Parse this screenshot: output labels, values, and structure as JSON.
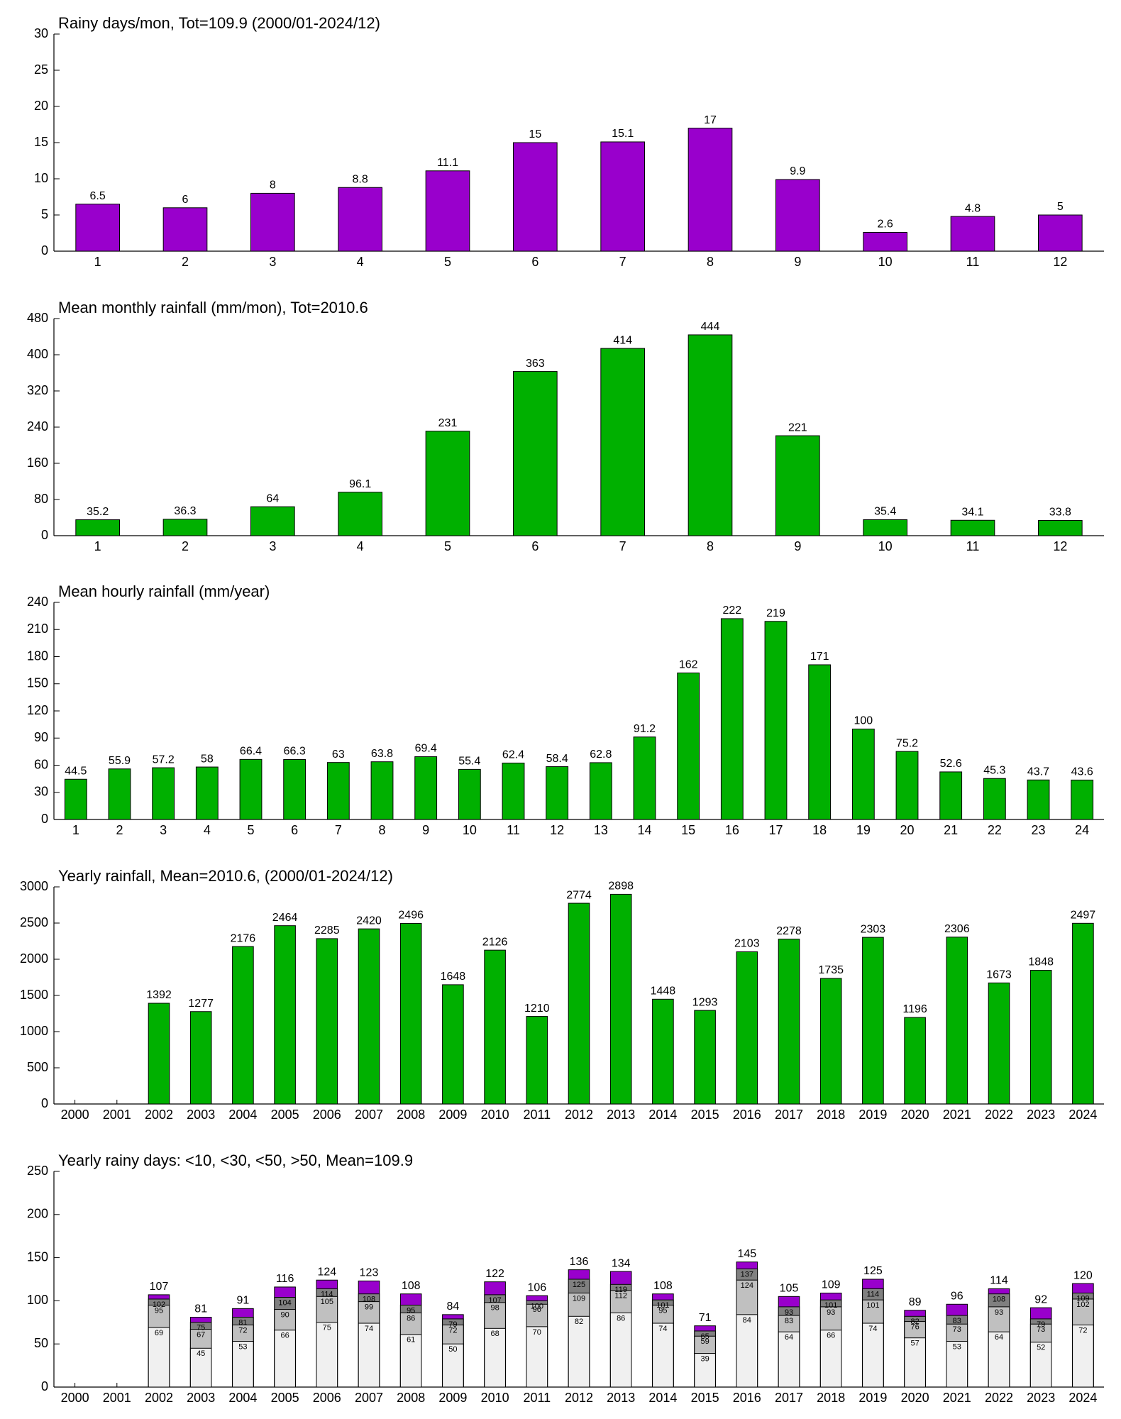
{
  "chart_data": [
    {
      "type": "bar",
      "title": "Rainy days/mon, Tot=109.9 (2000/01-2024/12)",
      "color": "#9900cc",
      "categories": [
        "1",
        "2",
        "3",
        "4",
        "5",
        "6",
        "7",
        "8",
        "9",
        "10",
        "11",
        "12"
      ],
      "values": [
        6.5,
        6,
        8,
        8.8,
        11.1,
        15,
        15.1,
        17,
        9.9,
        2.6,
        4.8,
        5
      ],
      "ylim": [
        0,
        30
      ],
      "yticks": [
        0,
        5,
        10,
        15,
        20,
        25,
        30
      ]
    },
    {
      "type": "bar",
      "title": "Mean monthly rainfall (mm/mon), Tot=2010.6",
      "color": "#00b000",
      "categories": [
        "1",
        "2",
        "3",
        "4",
        "5",
        "6",
        "7",
        "8",
        "9",
        "10",
        "11",
        "12"
      ],
      "values": [
        35.2,
        36.3,
        64,
        96.1,
        231,
        363,
        414,
        444,
        221,
        35.4,
        34.1,
        33.8
      ],
      "ylim": [
        0,
        480
      ],
      "yticks": [
        0,
        80,
        160,
        240,
        320,
        400,
        480
      ]
    },
    {
      "type": "bar",
      "title": "Mean hourly rainfall (mm/year)",
      "color": "#00b000",
      "categories": [
        "1",
        "2",
        "3",
        "4",
        "5",
        "6",
        "7",
        "8",
        "9",
        "10",
        "11",
        "12",
        "13",
        "14",
        "15",
        "16",
        "17",
        "18",
        "19",
        "20",
        "21",
        "22",
        "23",
        "24"
      ],
      "values": [
        44.5,
        55.9,
        57.2,
        58,
        66.4,
        66.3,
        63,
        63.8,
        69.4,
        55.4,
        62.4,
        58.4,
        62.8,
        91.2,
        162,
        222,
        219,
        171,
        100,
        75.2,
        52.6,
        45.3,
        43.7,
        43.6
      ],
      "ylim": [
        0,
        240
      ],
      "yticks": [
        0,
        30,
        60,
        90,
        120,
        150,
        180,
        210,
        240
      ]
    },
    {
      "type": "bar",
      "title": "Yearly rainfall, Mean=2010.6, (2000/01-2024/12)",
      "color": "#00b000",
      "categories": [
        "2000",
        "2001",
        "2002",
        "2003",
        "2004",
        "2005",
        "2006",
        "2007",
        "2008",
        "2009",
        "2010",
        "2011",
        "2012",
        "2013",
        "2014",
        "2015",
        "2016",
        "2017",
        "2018",
        "2019",
        "2020",
        "2021",
        "2022",
        "2023",
        "2024"
      ],
      "values": [
        null,
        null,
        1392,
        1277,
        2176,
        2464,
        2285,
        2420,
        2496,
        1648,
        2126,
        1210,
        2774,
        2898,
        1448,
        1293,
        2103,
        2278,
        1735,
        2303,
        1196,
        2306,
        1673,
        1848,
        2497
      ],
      "ylim": [
        0,
        3000
      ],
      "yticks": [
        0,
        500,
        1000,
        1500,
        2000,
        2500,
        3000
      ]
    },
    {
      "type": "overlay",
      "title": "Yearly rainy days: <10, <30, <50, >50, Mean=109.9",
      "categories": [
        "2000",
        "2001",
        "2002",
        "2003",
        "2004",
        "2005",
        "2006",
        "2007",
        "2008",
        "2009",
        "2010",
        "2011",
        "2012",
        "2013",
        "2014",
        "2015",
        "2016",
        "2017",
        "2018",
        "2019",
        "2020",
        "2021",
        "2022",
        "2023",
        "2024"
      ],
      "series": [
        {
          "color": "#f0f0f0",
          "values": [
            null,
            null,
            69,
            45,
            53,
            66,
            75,
            74,
            61,
            50,
            68,
            70,
            82,
            86,
            74,
            39,
            84,
            64,
            66,
            74,
            57,
            53,
            64,
            52,
            72
          ]
        },
        {
          "color": "#c0c0c0",
          "values": [
            null,
            null,
            95,
            67,
            72,
            90,
            105,
            99,
            86,
            72,
            98,
            96,
            109,
            112,
            95,
            59,
            124,
            83,
            93,
            101,
            76,
            73,
            93,
            73,
            102
          ]
        },
        {
          "color": "#808080",
          "values": [
            null,
            null,
            102,
            75,
            81,
            104,
            114,
            108,
            95,
            79,
            107,
            100,
            125,
            119,
            101,
            65,
            137,
            93,
            101,
            114,
            82,
            83,
            108,
            79,
            109
          ]
        },
        {
          "color": "#9900cc",
          "values": [
            null,
            null,
            107,
            81,
            91,
            116,
            124,
            123,
            108,
            84,
            122,
            106,
            136,
            134,
            108,
            71,
            145,
            105,
            109,
            125,
            89,
            96,
            114,
            92,
            120
          ]
        }
      ],
      "ylim": [
        0,
        250
      ],
      "yticks": [
        0,
        50,
        100,
        150,
        200,
        250
      ]
    }
  ]
}
